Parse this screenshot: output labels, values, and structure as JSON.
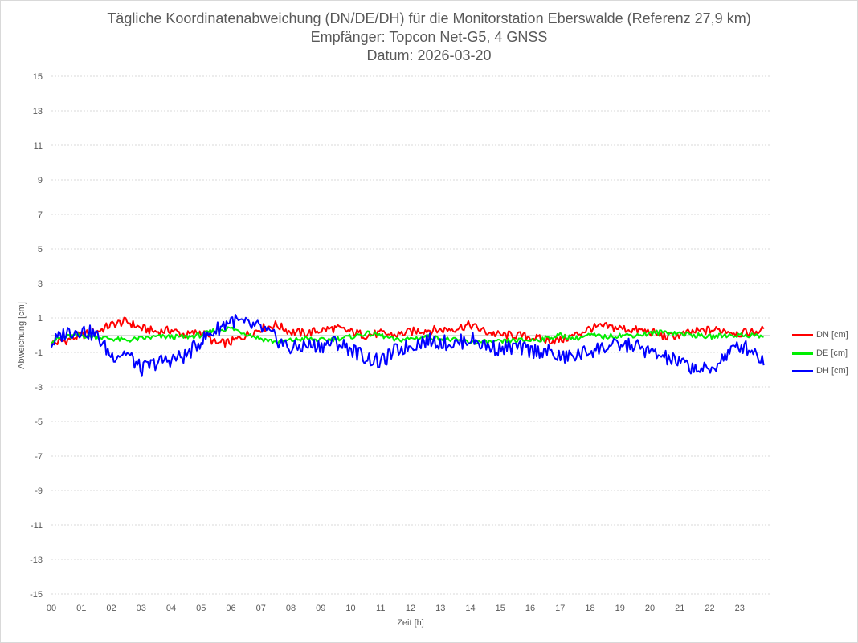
{
  "title": {
    "line1": "Tägliche Koordinatenabweichung (DN/DE/DH) für die Monitorstation Eberswalde (Referenz 27,9 km)",
    "line2": "Empfänger: Topcon Net-G5, 4 GNSS",
    "line3": "Datum: 2026-03-20"
  },
  "chart_data": {
    "type": "line",
    "title": "Tägliche Koordinatenabweichung (DN/DE/DH) für die Monitorstation Eberswalde (Referenz 27,9 km)",
    "xlabel": "Zeit [h]",
    "ylabel": "Abweichung [cm]",
    "xlim": [
      0,
      24
    ],
    "ylim": [
      -15,
      15
    ],
    "y_ticks": [
      "15",
      "13",
      "11",
      "9",
      "7",
      "5",
      "3",
      "1",
      "-1",
      "-3",
      "-5",
      "-7",
      "-9",
      "-11",
      "-13",
      "-15"
    ],
    "x_ticks": [
      "00",
      "01",
      "02",
      "03",
      "04",
      "05",
      "06",
      "07",
      "08",
      "09",
      "10",
      "11",
      "12",
      "13",
      "14",
      "15",
      "16",
      "17",
      "18",
      "19",
      "20",
      "21",
      "22",
      "23"
    ],
    "grid": true,
    "legend_position": "right",
    "series": [
      {
        "name": "DN [cm]",
        "color": "#ff0000",
        "x": [
          0,
          0.5,
          1,
          1.5,
          2,
          2.5,
          3,
          3.5,
          4,
          4.5,
          5,
          5.5,
          6,
          6.5,
          7,
          7.5,
          8,
          8.5,
          9,
          9.5,
          10,
          10.5,
          11,
          11.5,
          12,
          12.5,
          13,
          13.5,
          14,
          14.5,
          15,
          15.5,
          16,
          16.5,
          17,
          17.5,
          18,
          18.5,
          19,
          19.5,
          20,
          20.5,
          21,
          21.5,
          22,
          22.5,
          23,
          23.5,
          23.8
        ],
        "y": [
          -0.5,
          -0.3,
          0,
          0.2,
          0.6,
          0.8,
          0.4,
          0.2,
          0.3,
          0,
          0.2,
          -0.5,
          -0.4,
          0,
          0.4,
          0.6,
          0.2,
          0.1,
          0.3,
          0.4,
          0.2,
          0,
          0.1,
          0,
          0.2,
          0.3,
          0.3,
          0.4,
          0.6,
          0.2,
          0,
          0,
          -0.1,
          -0.3,
          -0.3,
          0,
          0.4,
          0.5,
          0.4,
          0.3,
          0.2,
          -0.1,
          0,
          0.2,
          0.3,
          0.3,
          0.1,
          0.2,
          0.3
        ]
      },
      {
        "name": "DE [cm]",
        "color": "#00ee00",
        "x": [
          0,
          0.5,
          1,
          1.5,
          2,
          2.5,
          3,
          3.5,
          4,
          4.5,
          5,
          5.5,
          6,
          6.5,
          7,
          7.5,
          8,
          8.5,
          9,
          9.5,
          10,
          10.5,
          11,
          11.5,
          12,
          12.5,
          13,
          13.5,
          14,
          14.5,
          15,
          15.5,
          16,
          16.5,
          17,
          17.5,
          18,
          18.5,
          19,
          19.5,
          20,
          20.5,
          21,
          21.5,
          22,
          22.5,
          23,
          23.5,
          23.8
        ],
        "y": [
          -0.3,
          -0.1,
          0,
          -0.1,
          -0.2,
          -0.3,
          -0.2,
          -0.1,
          -0.1,
          -0.1,
          0,
          0.3,
          0.4,
          0.1,
          -0.2,
          -0.4,
          -0.3,
          -0.2,
          -0.3,
          -0.2,
          -0.1,
          0.1,
          0,
          -0.3,
          -0.2,
          -0.1,
          -0.2,
          -0.3,
          -0.4,
          -0.4,
          -0.4,
          -0.3,
          -0.3,
          -0.2,
          0,
          -0.2,
          0,
          -0.1,
          0,
          0,
          0.1,
          0.2,
          0.1,
          0,
          -0.1,
          0,
          0,
          0,
          -0.1
        ]
      },
      {
        "name": "DH [cm]",
        "color": "#0000ff",
        "x": [
          0,
          0.5,
          1,
          1.5,
          2,
          2.5,
          3,
          3.5,
          4,
          4.5,
          5,
          5.5,
          6,
          6.5,
          7,
          7.5,
          8,
          8.5,
          9,
          9.5,
          10,
          10.5,
          11,
          11.5,
          12,
          12.5,
          13,
          13.5,
          14,
          14.5,
          15,
          15.5,
          16,
          16.5,
          17,
          17.5,
          18,
          18.5,
          19,
          19.5,
          20,
          20.5,
          21,
          21.5,
          22,
          22.5,
          23,
          23.5,
          23.8
        ],
        "y": [
          -0.5,
          0.2,
          0.3,
          0,
          -1.2,
          -1,
          -2,
          -1.6,
          -1.4,
          -1.2,
          -0.3,
          0.3,
          0.9,
          0.6,
          0.4,
          -0.2,
          -0.8,
          -0.6,
          -0.6,
          -0.4,
          -0.8,
          -1.3,
          -1.6,
          -0.9,
          -0.6,
          -0.3,
          -0.4,
          -0.5,
          -0.2,
          -0.6,
          -0.8,
          -0.7,
          -0.9,
          -0.9,
          -1.3,
          -1.2,
          -0.9,
          -0.7,
          -0.6,
          -0.6,
          -1,
          -1.3,
          -1.6,
          -1.9,
          -2.1,
          -1.2,
          -0.6,
          -0.9,
          -1.6
        ]
      }
    ]
  }
}
